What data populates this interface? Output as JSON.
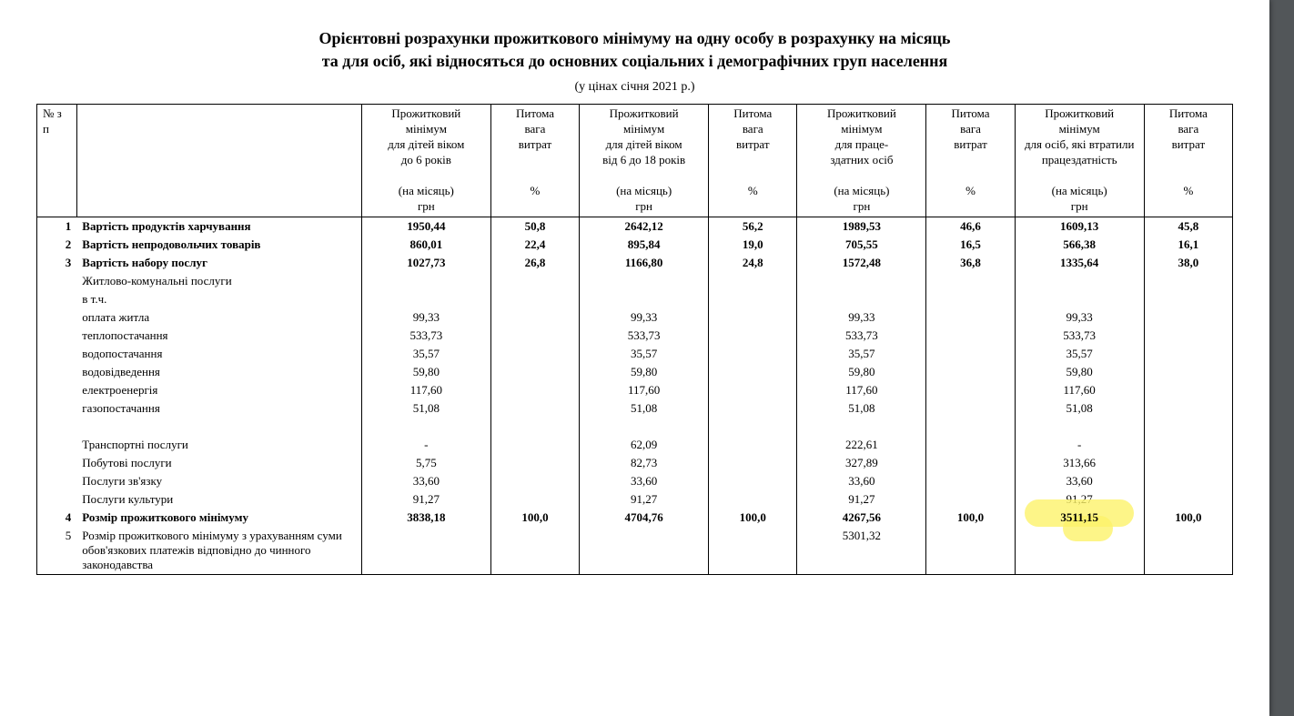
{
  "title_line1": "Орієнтовні розрахунки прожиткового мінімуму на одну особу в розрахунку на місяць",
  "title_line2": "та для осіб, які відносяться до основних соціальних і демографічних груп населення",
  "subtitle": "(у цінах січня  2021 р.)",
  "headers": {
    "num": "№ з\\п",
    "label": "",
    "col1_lines": [
      "Прожитковий",
      "мінімум",
      "для дітей віком",
      "до 6 років",
      "",
      "(на місяць)",
      "грн"
    ],
    "col1p_lines": [
      "Питома",
      "вага",
      "витрат",
      "",
      "",
      "%"
    ],
    "col2_lines": [
      "Прожитковий",
      "мінімум",
      "для дітей віком",
      "від 6 до 18 років",
      "",
      "(на місяць)",
      "грн"
    ],
    "col2p_lines": [
      "Питома",
      "вага",
      "витрат",
      "",
      "",
      "%"
    ],
    "col3_lines": [
      "Прожитковий",
      "мінімум",
      "для  праце-",
      "здатних осіб",
      "",
      "(на місяць)",
      "грн"
    ],
    "col3p_lines": [
      "Питома",
      "вага",
      "витрат",
      "",
      "",
      "%"
    ],
    "col4_lines": [
      "Прожитковий",
      "мінімум",
      "для осіб, які втратили",
      "працездатність",
      "",
      "(на місяць)",
      "грн"
    ],
    "col4p_lines": [
      "Питома",
      "вага",
      "витрат",
      "",
      "",
      "%"
    ]
  },
  "rows": [
    {
      "n": "1",
      "label": "Вартість продуктів харчування",
      "v1": "1950,44",
      "p1": "50,8",
      "v2": "2642,12",
      "p2": "56,2",
      "v3": "1989,53",
      "p3": "46,6",
      "v4": "1609,13",
      "p4": "45,8",
      "bold": true,
      "pad": true
    },
    {
      "n": "2",
      "label": "Вартість  непродовольчих товарів",
      "v1": "860,01",
      "p1": "22,4",
      "v2": "895,84",
      "p2": "19,0",
      "v3": "705,55",
      "p3": "16,5",
      "v4": "566,38",
      "p4": "16,1",
      "bold": true,
      "pad": true
    },
    {
      "n": "3",
      "label": "Вартість набору послуг",
      "v1": "1027,73",
      "p1": "26,8",
      "v2": "1166,80",
      "p2": "24,8",
      "v3": "1572,48",
      "p3": "36,8",
      "v4": "1335,64",
      "p4": "38,0",
      "bold": true,
      "pad": true
    },
    {
      "label": "Житлово-комунальні послуги",
      "sub": true
    },
    {
      "label": "в т.ч.",
      "sub": true
    },
    {
      "label": "оплата житла",
      "v1": "99,33",
      "v2": "99,33",
      "v3": "99,33",
      "v4": "99,33",
      "sub": true
    },
    {
      "label": "теплопостачання",
      "v1": "533,73",
      "v2": "533,73",
      "v3": "533,73",
      "v4": "533,73",
      "sub": true
    },
    {
      "label": "водопостачання",
      "v1": "35,57",
      "v2": "35,57",
      "v3": "35,57",
      "v4": "35,57",
      "sub": true
    },
    {
      "label": "водовідведення",
      "v1": "59,80",
      "v2": "59,80",
      "v3": "59,80",
      "v4": "59,80",
      "sub": true
    },
    {
      "label": "електроенергія",
      "v1": "117,60",
      "v2": "117,60",
      "v3": "117,60",
      "v4": "117,60",
      "sub": true
    },
    {
      "label": "газопостачання",
      "v1": "51,08",
      "v2": "51,08",
      "v3": "51,08",
      "v4": "51,08",
      "sub": true
    },
    {
      "label": "",
      "sub": true,
      "spacer": true
    },
    {
      "label": "Транспортні послуги",
      "v1": "-",
      "v2": "62,09",
      "v3": "222,61",
      "v4": "-",
      "sub": true
    },
    {
      "label": "Побутові послуги",
      "v1": "5,75",
      "v2": "82,73",
      "v3": "327,89",
      "v4": "313,66",
      "sub": true
    },
    {
      "label": "Послуги зв'язку",
      "v1": "33,60",
      "v2": "33,60",
      "v3": "33,60",
      "v4": "33,60",
      "sub": true
    },
    {
      "label": "Послуги культури",
      "v1": "91,27",
      "v2": "91,27",
      "v3": "91,27",
      "v4": "91,27",
      "sub": true
    },
    {
      "n": "4",
      "label": "Розмір прожиткового мінімуму",
      "v1": "3838,18",
      "p1": "100,0",
      "v2": "4704,76",
      "p2": "100,0",
      "v3": "4267,56",
      "p3": "100,0",
      "v4": "3511,15",
      "p4": "100,0",
      "bold": true,
      "pad": true,
      "highlight_v4": true
    },
    {
      "n": "5",
      "label": "Розмір прожиткового мінімуму з урахуванням суми обов'язкових платежів відповідно до чинного законодавства",
      "v3": "5301,32",
      "sub": false,
      "last": true
    }
  ],
  "styling": {
    "page_bg": "#ffffff",
    "viewer_bg": "#525659",
    "text_color": "#000000",
    "border_color": "#000000",
    "highlight_color": "#fcf36a",
    "title_fontsize": 18,
    "body_fontsize": 13,
    "font_family": "Times New Roman"
  }
}
